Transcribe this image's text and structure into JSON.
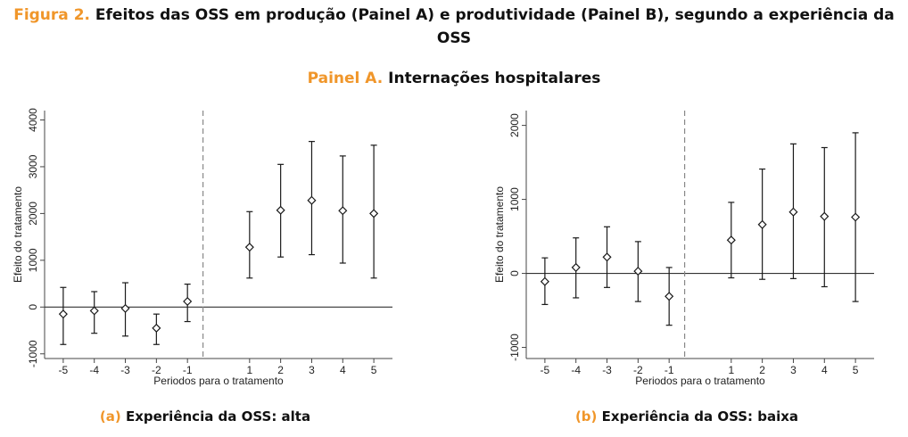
{
  "figure": {
    "label": "Figura 2.",
    "title_line1": "Efeitos das OSS em produção (Painel A) e produtividade (Painel B), segundo a experiência da",
    "title_line2": "OSS"
  },
  "panel": {
    "label": "Painel A.",
    "title": "Internações hospitalares"
  },
  "captions": [
    {
      "label": "(a)",
      "text": "Experiência da OSS: alta"
    },
    {
      "label": "(b)",
      "text": "Experiência da OSS: baixa"
    }
  ],
  "chart_data": [
    {
      "type": "scatter",
      "subtype": "coefficient-plot-with-confidence-intervals",
      "xlabel": "Periodos para o tratamento",
      "ylabel": "Efeito do tratamento",
      "x": [
        -5,
        -4,
        -3,
        -2,
        -1,
        1,
        2,
        3,
        4,
        5
      ],
      "x_tick_labels": [
        "-5",
        "-4",
        "-3",
        "-2",
        "-1",
        "1",
        "2",
        "3",
        "4",
        "5"
      ],
      "y": [
        -150,
        -80,
        -30,
        -450,
        120,
        1280,
        2070,
        2280,
        2060,
        2000
      ],
      "ci_low": [
        -800,
        -560,
        -620,
        -800,
        -310,
        620,
        1070,
        1120,
        940,
        620
      ],
      "ci_high": [
        420,
        330,
        520,
        -150,
        490,
        2040,
        3050,
        3540,
        3230,
        3460
      ],
      "y_ticks": [
        -1000,
        0,
        1000,
        2000,
        3000,
        4000
      ],
      "y_tick_labels": [
        "-1000",
        "0",
        "1000",
        "2000",
        "3000",
        "4000"
      ],
      "ylim": [
        -1100,
        4200
      ],
      "xlim": [
        -5.6,
        5.6
      ],
      "reference_line_y": 0,
      "treatment_line_x": -0.5,
      "grid": false,
      "marker": "hollow-diamond",
      "color": "#1a1a1a"
    },
    {
      "type": "scatter",
      "subtype": "coefficient-plot-with-confidence-intervals",
      "xlabel": "Periodos para o tratamento",
      "ylabel": "Efeito do tratamento",
      "x": [
        -5,
        -4,
        -3,
        -2,
        -1,
        1,
        2,
        3,
        4,
        5
      ],
      "x_tick_labels": [
        "-5",
        "-4",
        "-3",
        "-2",
        "-1",
        "1",
        "2",
        "3",
        "4",
        "5"
      ],
      "y": [
        -110,
        80,
        220,
        30,
        -310,
        450,
        660,
        830,
        770,
        760
      ],
      "ci_low": [
        -420,
        -330,
        -190,
        -380,
        -700,
        -60,
        -80,
        -70,
        -180,
        -380
      ],
      "ci_high": [
        210,
        480,
        630,
        430,
        80,
        960,
        1410,
        1750,
        1700,
        1900
      ],
      "y_ticks": [
        -1000,
        0,
        1000,
        2000
      ],
      "y_tick_labels": [
        "-1000",
        "0",
        "1000",
        "2000"
      ],
      "ylim": [
        -1150,
        2200
      ],
      "xlim": [
        -5.6,
        5.6
      ],
      "reference_line_y": 0,
      "treatment_line_x": -0.5,
      "grid": false,
      "marker": "hollow-diamond",
      "color": "#1a1a1a"
    }
  ]
}
